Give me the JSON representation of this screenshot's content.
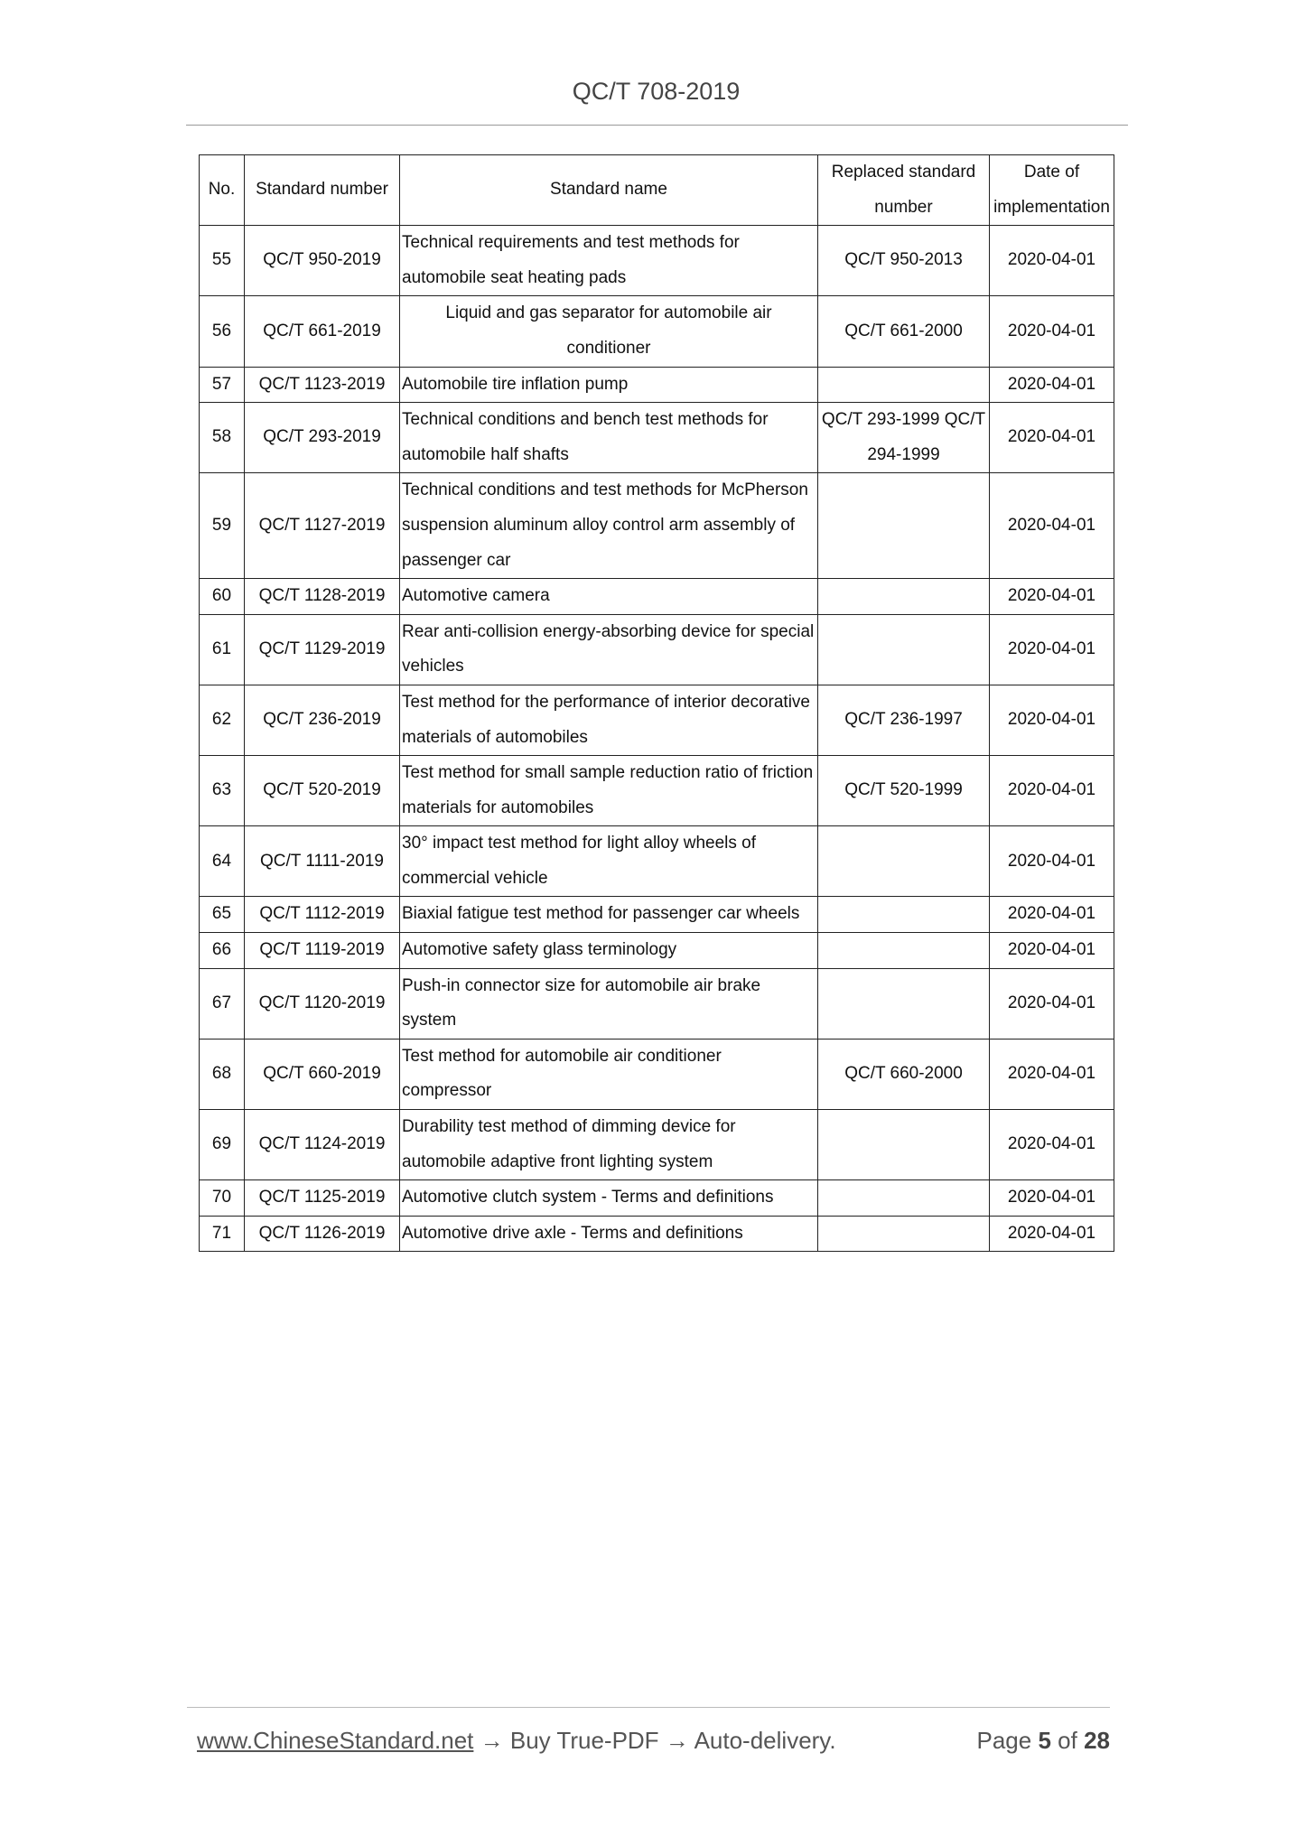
{
  "header": {
    "title": "QC/T 708-2019"
  },
  "table": {
    "columns": [
      "No.",
      "Standard number",
      "Standard name",
      "Replaced standard number",
      "Date of implementation"
    ],
    "rows": [
      {
        "no": "55",
        "number": "QC/T 950-2019",
        "name": "Technical requirements and test methods for automobile seat heating pads",
        "replaced": "QC/T 950-2013",
        "date": "2020-04-01"
      },
      {
        "no": "56",
        "number": "QC/T 661-2019",
        "name": "Liquid and gas separator for automobile air conditioner",
        "replaced": "QC/T 661-2000",
        "date": "2020-04-01"
      },
      {
        "no": "57",
        "number": "QC/T 1123-2019",
        "name": "Automobile tire inflation pump",
        "replaced": "",
        "date": "2020-04-01"
      },
      {
        "no": "58",
        "number": "QC/T 293-2019",
        "name": "Technical conditions and bench test methods for automobile half shafts",
        "replaced": "QC/T 293-1999 QC/T 294-1999",
        "date": "2020-04-01"
      },
      {
        "no": "59",
        "number": "QC/T 1127-2019",
        "name": "Technical conditions and test methods for McPherson suspension aluminum alloy control arm assembly of passenger car",
        "replaced": "",
        "date": "2020-04-01"
      },
      {
        "no": "60",
        "number": "QC/T 1128-2019",
        "name": "Automotive camera",
        "replaced": "",
        "date": "2020-04-01"
      },
      {
        "no": "61",
        "number": "QC/T 1129-2019",
        "name": "Rear anti-collision energy-absorbing device for special vehicles",
        "replaced": "",
        "date": "2020-04-01"
      },
      {
        "no": "62",
        "number": "QC/T 236-2019",
        "name": "Test method for the performance of interior decorative materials of automobiles",
        "replaced": "QC/T 236-1997",
        "date": "2020-04-01"
      },
      {
        "no": "63",
        "number": "QC/T 520-2019",
        "name": "Test method for small sample reduction ratio of friction materials for automobiles",
        "replaced": "QC/T 520-1999",
        "date": "2020-04-01"
      },
      {
        "no": "64",
        "number": "QC/T 1111-2019",
        "name": "30° impact test method for light alloy wheels of commercial vehicle",
        "replaced": "",
        "date": "2020-04-01"
      },
      {
        "no": "65",
        "number": "QC/T 1112-2019",
        "name": "Biaxial fatigue test method for passenger car wheels",
        "replaced": "",
        "date": "2020-04-01"
      },
      {
        "no": "66",
        "number": "QC/T 1119-2019",
        "name": "Automotive safety glass terminology",
        "replaced": "",
        "date": "2020-04-01"
      },
      {
        "no": "67",
        "number": "QC/T 1120-2019",
        "name": "Push-in connector size for automobile air brake system",
        "replaced": "",
        "date": "2020-04-01"
      },
      {
        "no": "68",
        "number": "QC/T 660-2019",
        "name": "Test method for automobile air conditioner compressor",
        "replaced": "QC/T 660-2000",
        "date": "2020-04-01"
      },
      {
        "no": "69",
        "number": "QC/T 1124-2019",
        "name": "Durability test method of dimming device for automobile adaptive front lighting system",
        "replaced": "",
        "date": "2020-04-01"
      },
      {
        "no": "70",
        "number": "QC/T 1125-2019",
        "name": "Automotive clutch system - Terms and definitions",
        "replaced": "",
        "date": "2020-04-01"
      },
      {
        "no": "71",
        "number": "QC/T 1126-2019",
        "name": "Automotive drive axle - Terms and definitions",
        "replaced": "",
        "date": "2020-04-01"
      }
    ]
  },
  "footer": {
    "link": "www.ChineseStandard.net",
    "text": " → Buy True-PDF → Auto-delivery.",
    "page_label": "Page",
    "page": "5",
    "of_label": "of",
    "total": "28"
  }
}
